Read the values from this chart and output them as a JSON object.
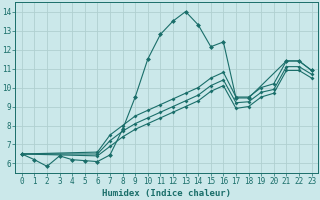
{
  "xlabel": "Humidex (Indice chaleur)",
  "background_color": "#cbe8ea",
  "grid_color": "#b0d0d0",
  "line_color": "#1a6e6a",
  "xlim": [
    -0.5,
    23.5
  ],
  "ylim": [
    5.5,
    14.5
  ],
  "xticks": [
    0,
    1,
    2,
    3,
    4,
    5,
    6,
    7,
    8,
    9,
    10,
    11,
    12,
    13,
    14,
    15,
    16,
    17,
    18,
    19,
    20,
    21,
    22,
    23
  ],
  "yticks": [
    6,
    7,
    8,
    9,
    10,
    11,
    12,
    13,
    14
  ],
  "lines": [
    {
      "x": [
        0,
        1,
        2,
        3,
        4,
        5,
        6,
        7,
        8,
        9,
        10,
        11,
        12,
        13,
        14,
        15,
        16,
        17,
        18,
        21,
        22,
        23
      ],
      "y": [
        6.5,
        6.2,
        5.85,
        6.4,
        6.2,
        6.15,
        6.1,
        6.45,
        7.8,
        9.5,
        11.5,
        12.8,
        13.5,
        14.0,
        13.3,
        12.15,
        12.4,
        9.45,
        9.45,
        11.4,
        11.4,
        10.9
      ]
    },
    {
      "x": [
        0,
        6,
        7,
        8,
        9,
        10,
        11,
        12,
        13,
        14,
        15,
        16,
        17,
        18,
        19,
        20,
        21,
        22,
        23
      ],
      "y": [
        6.5,
        6.6,
        7.5,
        8.0,
        8.5,
        8.8,
        9.1,
        9.4,
        9.7,
        10.0,
        10.5,
        10.8,
        9.5,
        9.5,
        10.0,
        10.2,
        11.4,
        11.4,
        10.9
      ]
    },
    {
      "x": [
        0,
        6,
        7,
        8,
        9,
        10,
        11,
        12,
        13,
        14,
        15,
        16,
        17,
        18,
        19,
        20,
        21,
        22,
        23
      ],
      "y": [
        6.5,
        6.5,
        7.2,
        7.7,
        8.1,
        8.4,
        8.7,
        9.0,
        9.3,
        9.6,
        10.1,
        10.4,
        9.2,
        9.25,
        9.75,
        9.9,
        11.1,
        11.1,
        10.7
      ]
    },
    {
      "x": [
        0,
        6,
        7,
        8,
        9,
        10,
        11,
        12,
        13,
        14,
        15,
        16,
        17,
        18,
        19,
        20,
        21,
        22,
        23
      ],
      "y": [
        6.5,
        6.4,
        6.9,
        7.4,
        7.8,
        8.1,
        8.4,
        8.7,
        9.0,
        9.3,
        9.8,
        10.1,
        8.9,
        9.0,
        9.5,
        9.7,
        10.9,
        10.9,
        10.5
      ]
    }
  ]
}
